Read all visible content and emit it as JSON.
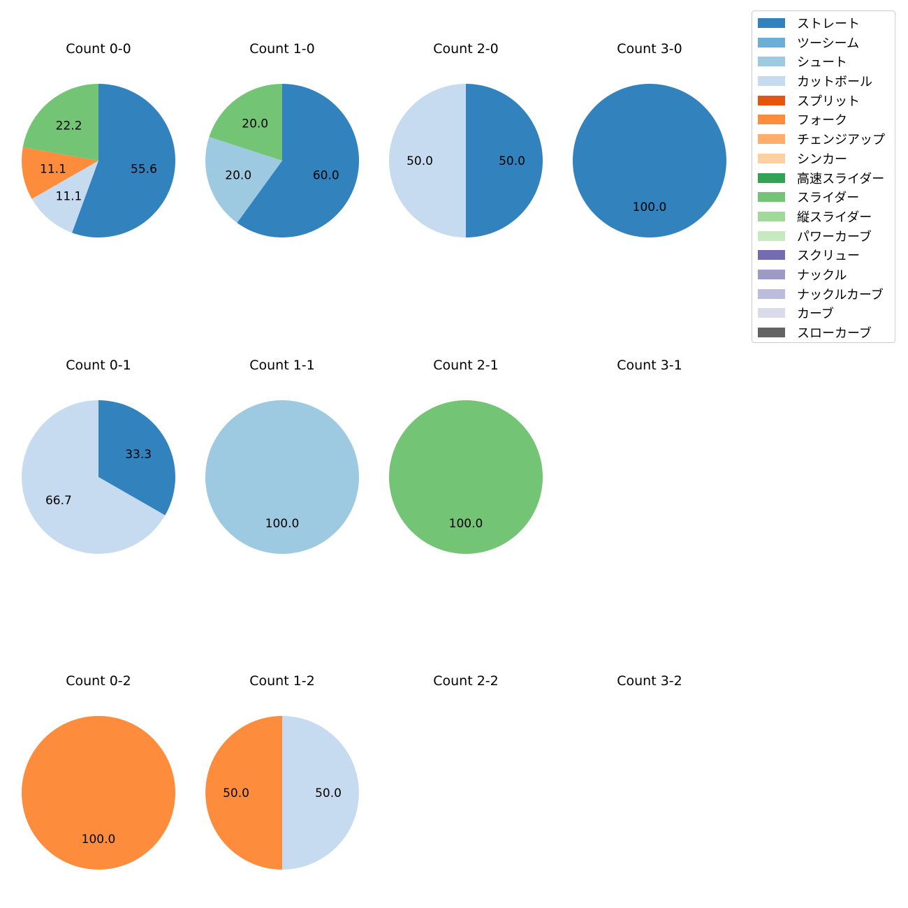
{
  "chart_data": {
    "type": "pie",
    "categories": [
      "ストレート",
      "ツーシーム",
      "シュート",
      "カットボール",
      "スプリット",
      "フォーク",
      "チェンジアップ",
      "シンカー",
      "高速スライダー",
      "スライダー",
      "縦スライダー",
      "パワーカーブ",
      "スクリュー",
      "ナックル",
      "ナックルカーブ",
      "カーブ",
      "スローカーブ"
    ],
    "colors": [
      "#3182bd",
      "#6baed6",
      "#9ecae1",
      "#c6dbef",
      "#e6550d",
      "#fd8d3c",
      "#fdae6b",
      "#fdd0a2",
      "#31a354",
      "#74c476",
      "#a1d99b",
      "#c7e9c0",
      "#756bb1",
      "#9e9ac8",
      "#bcbddc",
      "#dadaeb",
      "#636363"
    ],
    "legend_position": "top-right",
    "subplots": [
      {
        "title": "Count 0-0",
        "slices": [
          {
            "category": "ストレート",
            "value": 55.6,
            "label": "55.6"
          },
          {
            "category": "カットボール",
            "value": 11.1,
            "label": "11.1"
          },
          {
            "category": "フォーク",
            "value": 11.1,
            "label": "11.1"
          },
          {
            "category": "スライダー",
            "value": 22.2,
            "label": "22.2"
          }
        ]
      },
      {
        "title": "Count 1-0",
        "slices": [
          {
            "category": "ストレート",
            "value": 60.0,
            "label": "60.0"
          },
          {
            "category": "シュート",
            "value": 20.0,
            "label": "20.0"
          },
          {
            "category": "スライダー",
            "value": 20.0,
            "label": "20.0"
          }
        ]
      },
      {
        "title": "Count 2-0",
        "slices": [
          {
            "category": "ストレート",
            "value": 50.0,
            "label": "50.0"
          },
          {
            "category": "カットボール",
            "value": 50.0,
            "label": "50.0"
          }
        ]
      },
      {
        "title": "Count 3-0",
        "slices": [
          {
            "category": "ストレート",
            "value": 100.0,
            "label": "100.0"
          }
        ]
      },
      {
        "title": "Count 0-1",
        "slices": [
          {
            "category": "ストレート",
            "value": 33.3,
            "label": "33.3"
          },
          {
            "category": "カットボール",
            "value": 66.7,
            "label": "66.7"
          }
        ]
      },
      {
        "title": "Count 1-1",
        "slices": [
          {
            "category": "シュート",
            "value": 100.0,
            "label": "100.0"
          }
        ]
      },
      {
        "title": "Count 2-1",
        "slices": [
          {
            "category": "スライダー",
            "value": 100.0,
            "label": "100.0"
          }
        ]
      },
      {
        "title": "Count 3-1",
        "slices": []
      },
      {
        "title": "Count 0-2",
        "slices": [
          {
            "category": "フォーク",
            "value": 100.0,
            "label": "100.0"
          }
        ]
      },
      {
        "title": "Count 1-2",
        "slices": [
          {
            "category": "カットボール",
            "value": 50.0,
            "label": "50.0"
          },
          {
            "category": "フォーク",
            "value": 50.0,
            "label": "50.0"
          }
        ]
      },
      {
        "title": "Count 2-2",
        "slices": []
      },
      {
        "title": "Count 3-2",
        "slices": []
      }
    ]
  }
}
